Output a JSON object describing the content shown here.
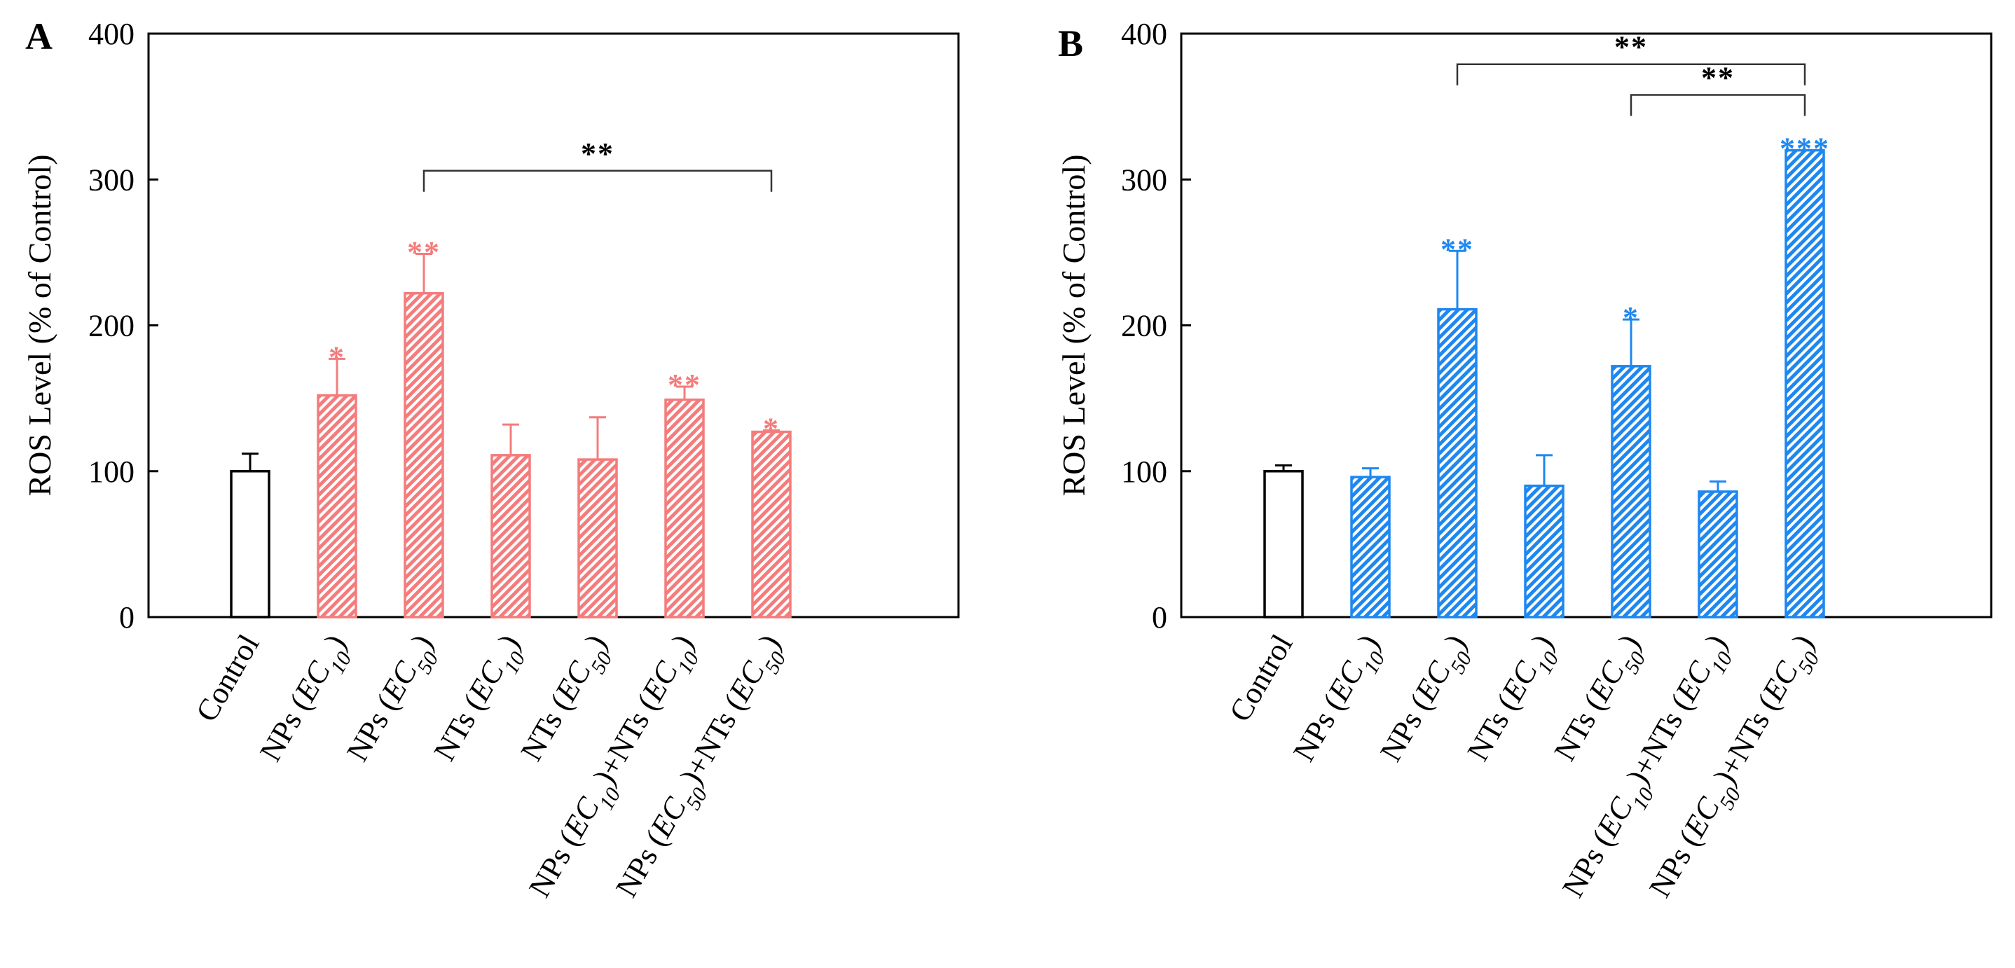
{
  "chart_data": [
    {
      "panel": "A",
      "type": "bar",
      "ylabel": "ROS Level  (% of Control)",
      "ylim": [
        0,
        400
      ],
      "yticks": [
        0,
        100,
        200,
        300,
        400
      ],
      "categories": [
        {
          "pre": "Control",
          "sub": "",
          "post": ""
        },
        {
          "pre": "NPs (EC",
          "sub": "10",
          "post": ")"
        },
        {
          "pre": "NPs (EC",
          "sub": "50",
          "post": ")"
        },
        {
          "pre": "NTs (EC",
          "sub": "10",
          "post": ")"
        },
        {
          "pre": "NTs (EC",
          "sub": "50",
          "post": ")"
        },
        {
          "pre": "NPs (EC",
          "sub": "10",
          "post": ")+NTs (EC",
          "sub2": "10",
          "post2": ")"
        },
        {
          "pre": "NPs (EC",
          "sub": "50",
          "post": ")+NTs (EC",
          "sub2": "50",
          "post2": ")"
        }
      ],
      "values": [
        100,
        152,
        222,
        111,
        108,
        149,
        127
      ],
      "errors": [
        12,
        25,
        27,
        21,
        29,
        9,
        1
      ],
      "significance": [
        "",
        "*",
        "**",
        "",
        "",
        "**",
        "*"
      ],
      "colors": {
        "control": "#000000",
        "treatment": "#f47c7c",
        "annotation": "#f47c7c"
      },
      "comparisons": [
        {
          "from": 2,
          "to": 6,
          "y": 306,
          "label": "**"
        }
      ]
    },
    {
      "panel": "B",
      "type": "bar",
      "ylabel": "ROS Level  (% of Control)",
      "ylim": [
        0,
        400
      ],
      "yticks": [
        0,
        100,
        200,
        300,
        400
      ],
      "categories": [
        {
          "pre": "Control",
          "sub": "",
          "post": ""
        },
        {
          "pre": "NPs (EC",
          "sub": "10",
          "post": ")"
        },
        {
          "pre": "NPs (EC",
          "sub": "50",
          "post": ")"
        },
        {
          "pre": "NTs (EC",
          "sub": "10",
          "post": ")"
        },
        {
          "pre": "NTs (EC",
          "sub": "50",
          "post": ")"
        },
        {
          "pre": "NPs (EC",
          "sub": "10",
          "post": ")+NTs (EC",
          "sub2": "10",
          "post2": ")"
        },
        {
          "pre": "NPs (EC",
          "sub": "50",
          "post": ")+NTs (EC",
          "sub2": "50",
          "post2": ")"
        }
      ],
      "values": [
        100,
        96,
        211,
        90,
        172,
        86,
        320
      ],
      "errors": [
        4,
        6,
        40,
        21,
        32,
        7,
        0
      ],
      "significance": [
        "",
        "",
        "**",
        "",
        "*",
        "",
        "***"
      ],
      "colors": {
        "control": "#000000",
        "treatment": "#1e87f0",
        "annotation": "#1e87f0"
      },
      "comparisons": [
        {
          "from": 2,
          "to": 6,
          "y": 379,
          "label": "**"
        },
        {
          "from": 4,
          "to": 6,
          "y": 358,
          "label": "**"
        }
      ]
    }
  ]
}
